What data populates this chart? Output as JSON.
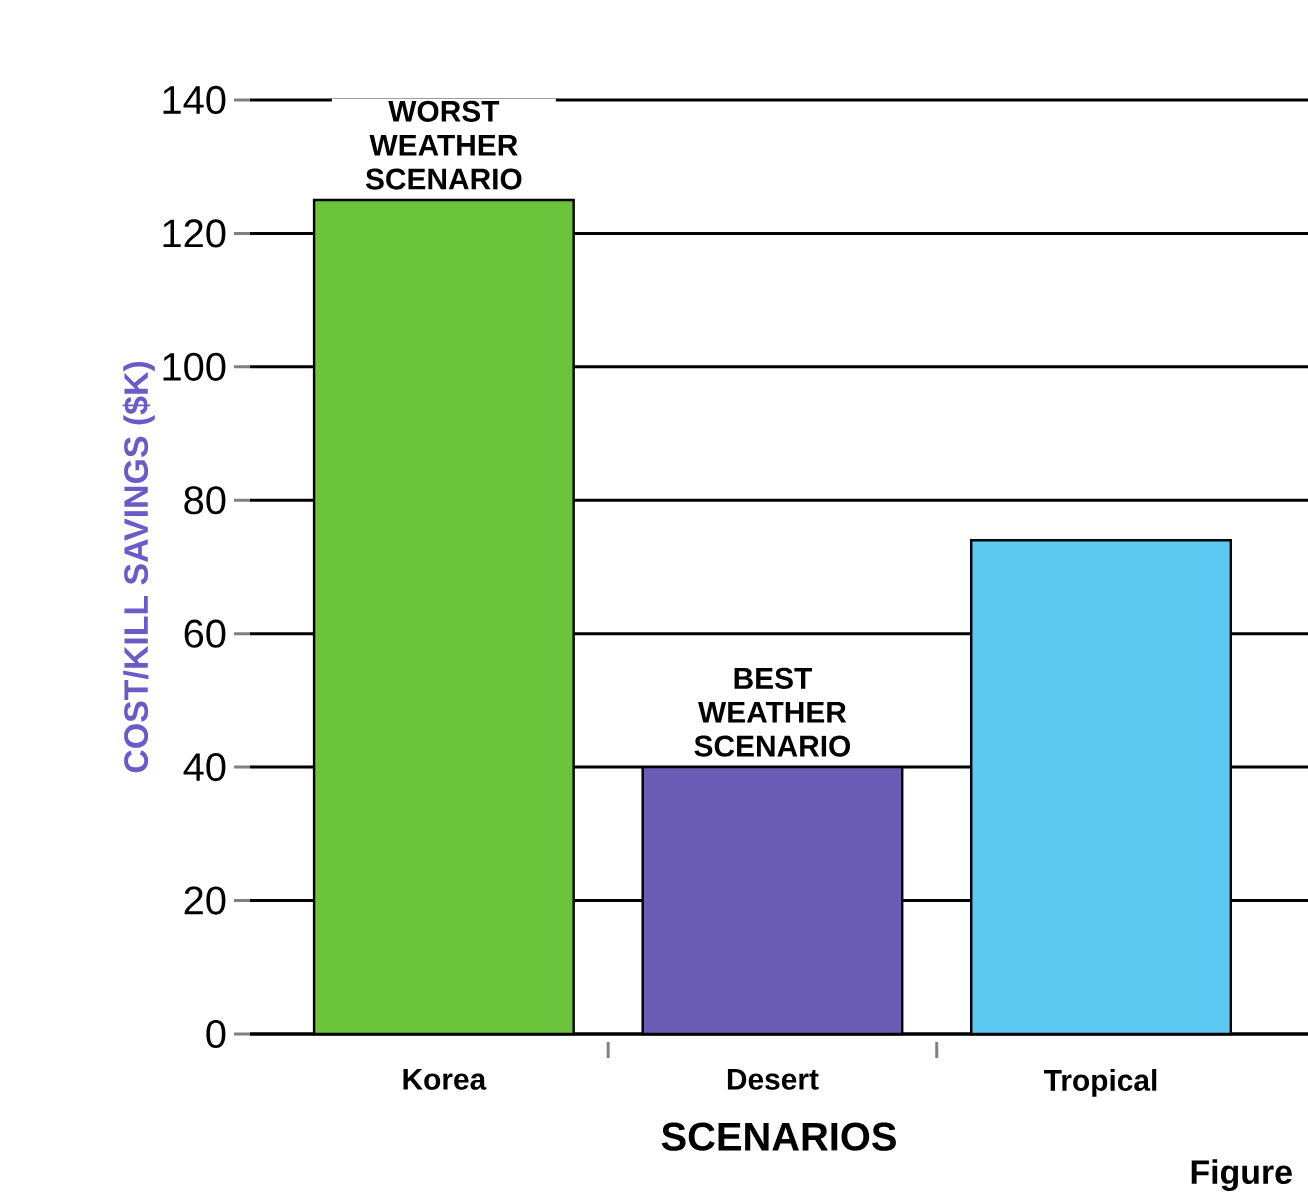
{
  "chart_data": {
    "type": "bar",
    "ylabel": "COST/KILL SAVINGS ($K)",
    "xlabel": "SCENARIOS",
    "categories": [
      "Korea",
      "Desert",
      "Tropical"
    ],
    "values": [
      125,
      40,
      74
    ],
    "colors": [
      "#6cc43c",
      "#6a5cb4",
      "#5ccaf0"
    ],
    "ylim": [
      0,
      140
    ],
    "yticks": [
      0,
      20,
      40,
      60,
      80,
      100,
      120,
      140
    ],
    "grid": "y",
    "annotations": [
      {
        "text": "WORST WEATHER SCENARIO",
        "x": "Korea",
        "y": 125
      },
      {
        "text": "BEST WEATHER SCENARIO",
        "x": "Desert",
        "y": 40
      },
      "Figure"
    ]
  }
}
